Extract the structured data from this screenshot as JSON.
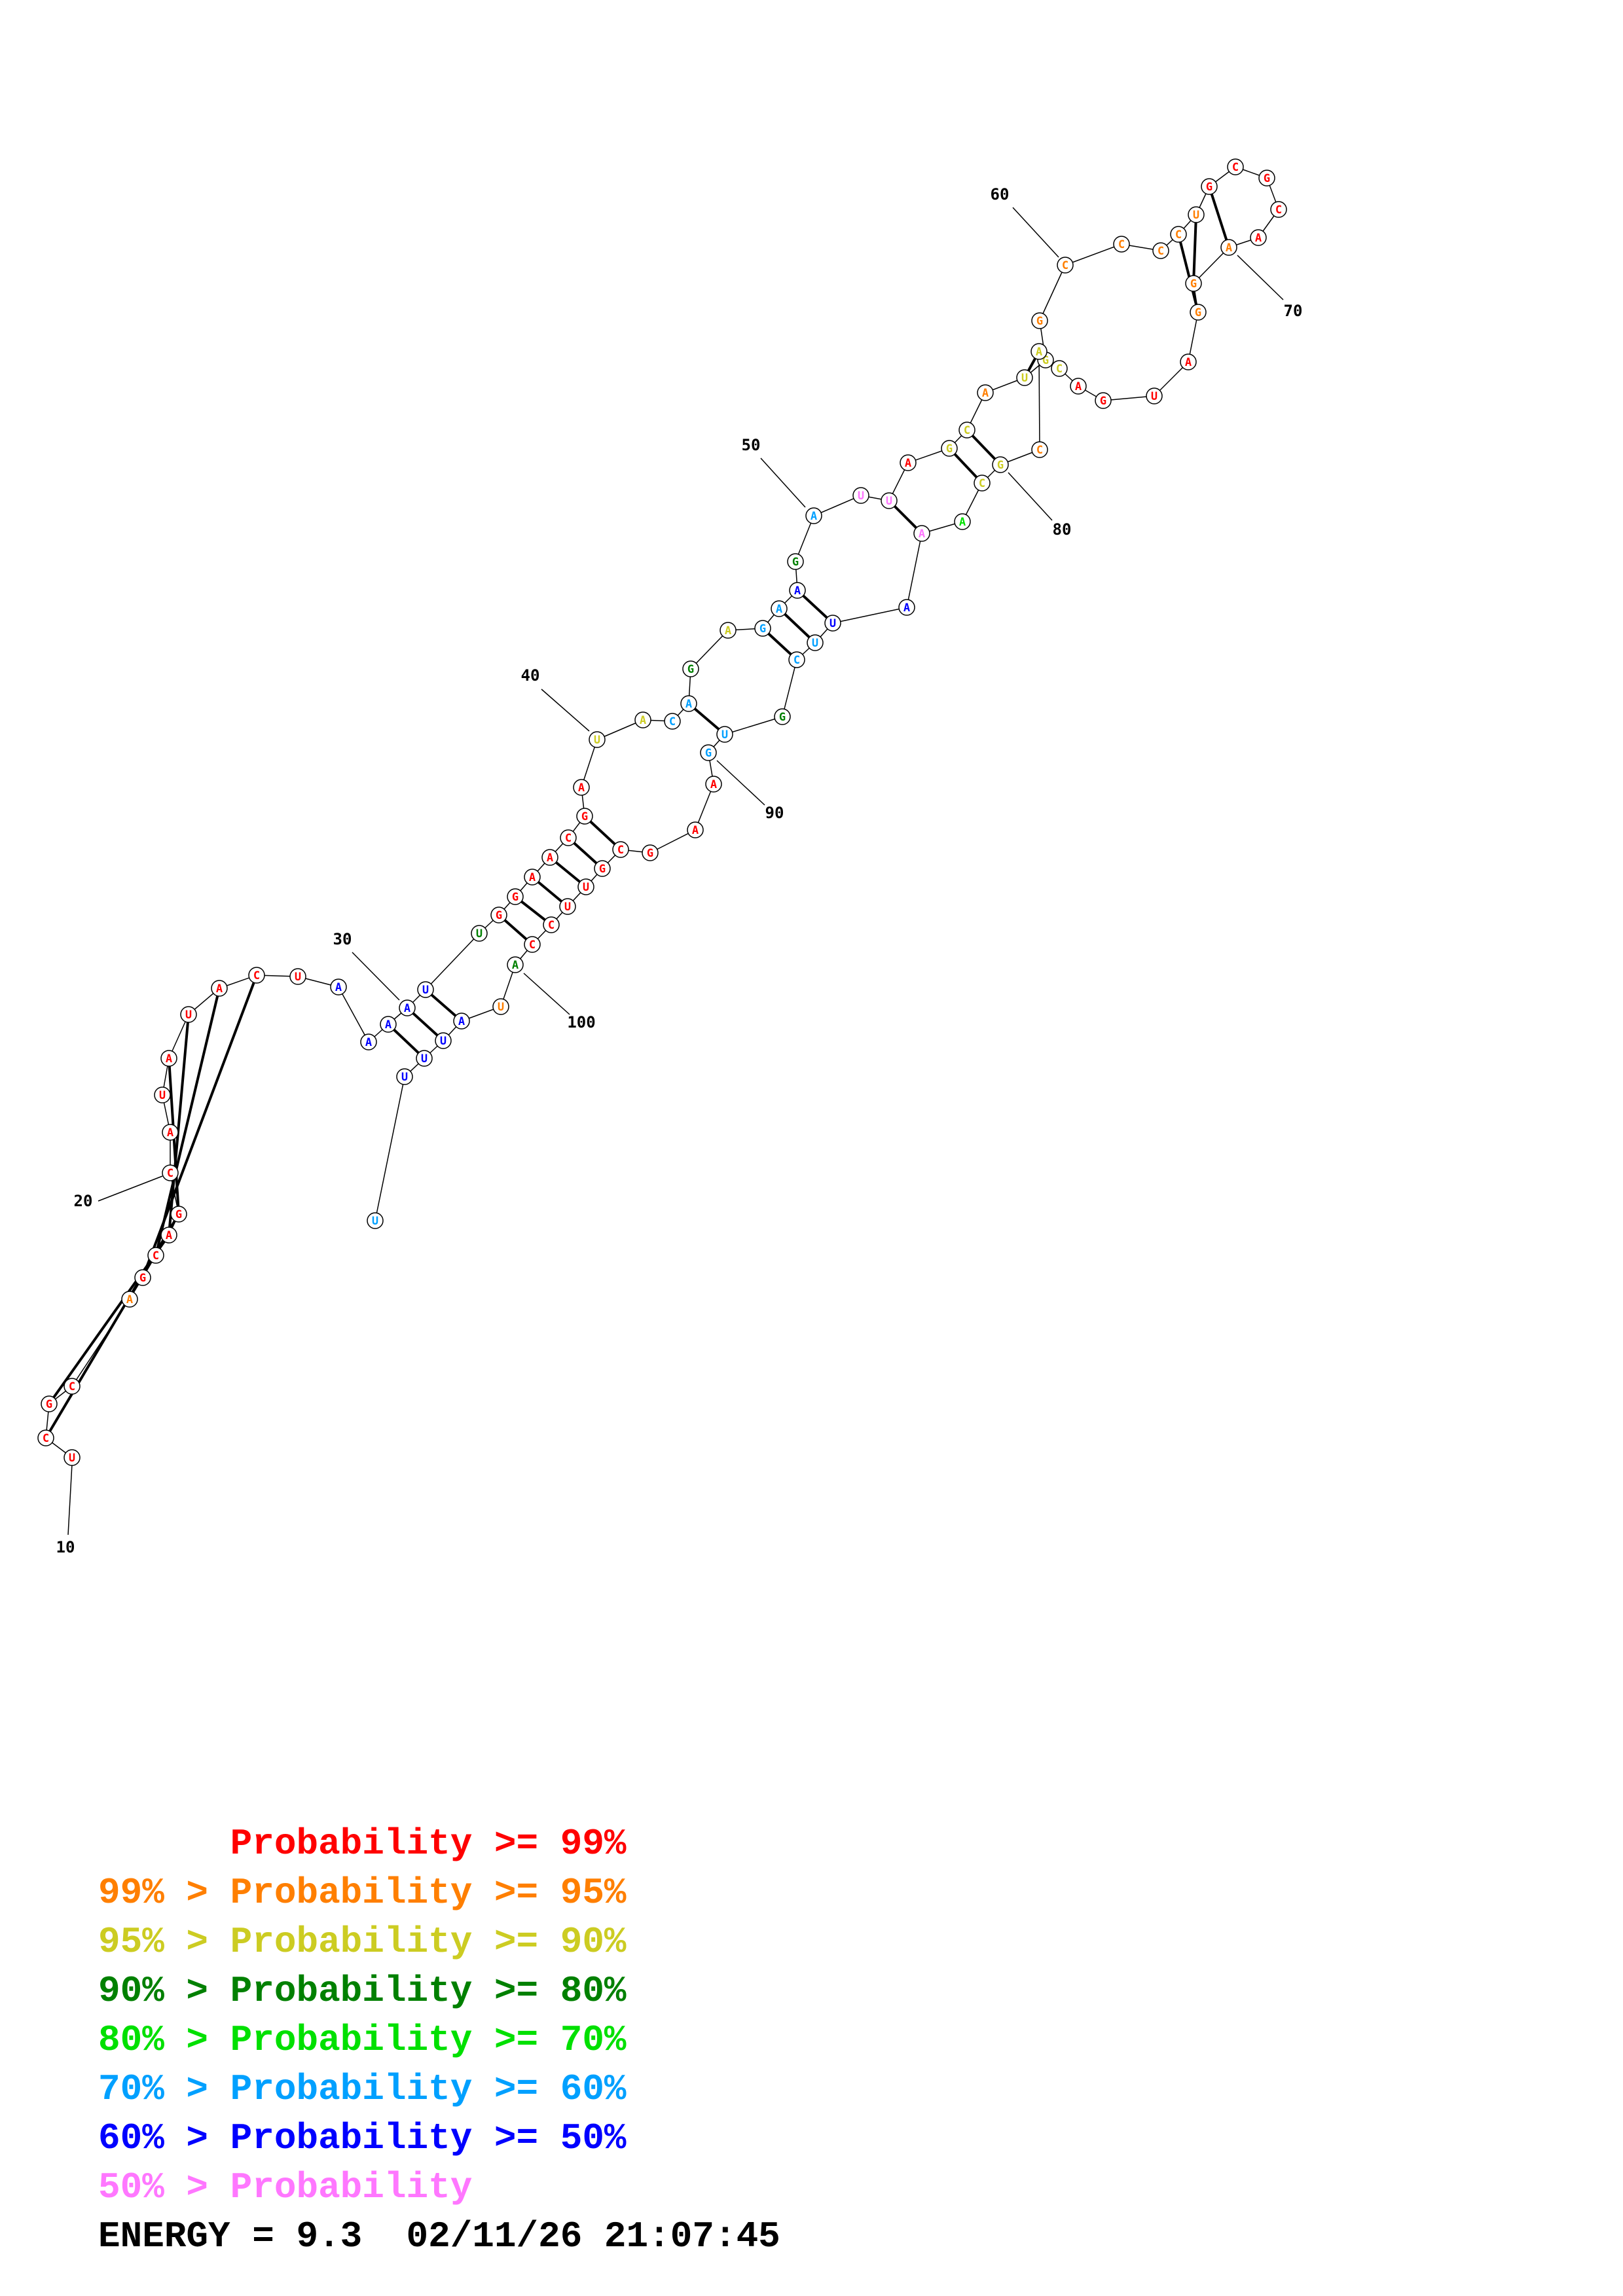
{
  "colors": {
    "p99": "#ff0000",
    "p95": "#ff7f00",
    "p90": "#cccc22",
    "p80": "#008000",
    "p70": "#00e000",
    "p60": "#00a0ff",
    "p50": "#0000ff",
    "plow": "#ff77ff"
  },
  "structure": {
    "nucleotides": [
      {
        "n": 10,
        "base": "U",
        "p": "p99"
      },
      {
        "n": 11,
        "base": "C",
        "p": "p99"
      },
      {
        "n": 12,
        "base": "G",
        "p": "p99"
      },
      {
        "n": 13,
        "base": "C",
        "p": "p99"
      },
      {
        "n": 14,
        "base": "A",
        "p": "p95"
      },
      {
        "n": 15,
        "base": "G",
        "p": "p99"
      },
      {
        "n": 16,
        "base": "C",
        "p": "p99"
      },
      {
        "n": 17,
        "base": "A",
        "p": "p99"
      },
      {
        "n": 18,
        "base": "G",
        "p": "p99"
      },
      {
        "n": 19,
        "base": "C",
        "p": "p99"
      },
      {
        "n": 20,
        "base": "A",
        "p": "p99"
      },
      {
        "n": 21,
        "base": "U",
        "p": "p99"
      },
      {
        "n": 22,
        "base": "A",
        "p": "p99"
      },
      {
        "n": 23,
        "base": "U",
        "p": "p99"
      },
      {
        "n": 24,
        "base": "A",
        "p": "p99"
      },
      {
        "n": 25,
        "base": "C",
        "p": "p99"
      },
      {
        "n": 26,
        "base": "U",
        "p": "p99"
      },
      {
        "n": 27,
        "base": "A",
        "p": "p50"
      },
      {
        "n": 28,
        "base": "A",
        "p": "p50"
      },
      {
        "n": 29,
        "base": "A",
        "p": "p50"
      },
      {
        "n": 30,
        "base": "A",
        "p": "p50"
      },
      {
        "n": 31,
        "base": "U",
        "p": "p50"
      },
      {
        "n": 32,
        "base": "U",
        "p": "p80"
      },
      {
        "n": 33,
        "base": "G",
        "p": "p99"
      },
      {
        "n": 34,
        "base": "G",
        "p": "p99"
      },
      {
        "n": 35,
        "base": "A",
        "p": "p99"
      },
      {
        "n": 36,
        "base": "A",
        "p": "p99"
      },
      {
        "n": 37,
        "base": "C",
        "p": "p99"
      },
      {
        "n": 38,
        "base": "G",
        "p": "p99"
      },
      {
        "n": 39,
        "base": "A",
        "p": "p99"
      },
      {
        "n": 40,
        "base": "U",
        "p": "p90"
      },
      {
        "n": 41,
        "base": "A",
        "p": "p90"
      },
      {
        "n": 42,
        "base": "C",
        "p": "p60"
      },
      {
        "n": 43,
        "base": "A",
        "p": "p60"
      },
      {
        "n": 44,
        "base": "G",
        "p": "p80"
      },
      {
        "n": 45,
        "base": "A",
        "p": "p90"
      },
      {
        "n": 46,
        "base": "G",
        "p": "p60"
      },
      {
        "n": 47,
        "base": "A",
        "p": "p60"
      },
      {
        "n": 48,
        "base": "A",
        "p": "p50"
      },
      {
        "n": 49,
        "base": "G",
        "p": "p80"
      },
      {
        "n": 50,
        "base": "A",
        "p": "p60"
      },
      {
        "n": 51,
        "base": "U",
        "p": "plow"
      },
      {
        "n": 52,
        "base": "U",
        "p": "plow"
      },
      {
        "n": 53,
        "base": "A",
        "p": "p99"
      },
      {
        "n": 54,
        "base": "G",
        "p": "p90"
      },
      {
        "n": 55,
        "base": "C",
        "p": "p90"
      },
      {
        "n": 56,
        "base": "A",
        "p": "p95"
      },
      {
        "n": 57,
        "base": "U",
        "p": "p90"
      },
      {
        "n": 58,
        "base": "G",
        "p": "p90"
      },
      {
        "n": 59,
        "base": "G",
        "p": "p95"
      },
      {
        "n": 60,
        "base": "C",
        "p": "p95"
      },
      {
        "n": 61,
        "base": "C",
        "p": "p95"
      },
      {
        "n": 62,
        "base": "C",
        "p": "p95"
      },
      {
        "n": 63,
        "base": "C",
        "p": "p95"
      },
      {
        "n": 64,
        "base": "U",
        "p": "p95"
      },
      {
        "n": 65,
        "base": "G",
        "p": "p99"
      },
      {
        "n": 66,
        "base": "C",
        "p": "p99"
      },
      {
        "n": 67,
        "base": "G",
        "p": "p99"
      },
      {
        "n": 68,
        "base": "C",
        "p": "p99"
      },
      {
        "n": 69,
        "base": "A",
        "p": "p99"
      },
      {
        "n": 70,
        "base": "A",
        "p": "p95"
      },
      {
        "n": 71,
        "base": "G",
        "p": "p95"
      },
      {
        "n": 72,
        "base": "G",
        "p": "p95"
      },
      {
        "n": 73,
        "base": "A",
        "p": "p99"
      },
      {
        "n": 74,
        "base": "U",
        "p": "p99"
      },
      {
        "n": 75,
        "base": "G",
        "p": "p99"
      },
      {
        "n": 76,
        "base": "A",
        "p": "p99"
      },
      {
        "n": 77,
        "base": "C",
        "p": "p90"
      },
      {
        "n": 78,
        "base": "A",
        "p": "p90"
      },
      {
        "n": 79,
        "base": "C",
        "p": "p95"
      },
      {
        "n": 80,
        "base": "G",
        "p": "p90"
      },
      {
        "n": 81,
        "base": "C",
        "p": "p90"
      },
      {
        "n": 82,
        "base": "A",
        "p": "p70"
      },
      {
        "n": 83,
        "base": "A",
        "p": "plow"
      },
      {
        "n": 84,
        "base": "A",
        "p": "p50"
      },
      {
        "n": 85,
        "base": "U",
        "p": "p50"
      },
      {
        "n": 86,
        "base": "U",
        "p": "p60"
      },
      {
        "n": 87,
        "base": "C",
        "p": "p60"
      },
      {
        "n": 88,
        "base": "G",
        "p": "p80"
      },
      {
        "n": 89,
        "base": "U",
        "p": "p60"
      },
      {
        "n": 90,
        "base": "G",
        "p": "p60"
      },
      {
        "n": 91,
        "base": "A",
        "p": "p99"
      },
      {
        "n": 92,
        "base": "A",
        "p": "p99"
      },
      {
        "n": 93,
        "base": "G",
        "p": "p99"
      },
      {
        "n": 94,
        "base": "C",
        "p": "p99"
      },
      {
        "n": 95,
        "base": "G",
        "p": "p99"
      },
      {
        "n": 96,
        "base": "U",
        "p": "p99"
      },
      {
        "n": 97,
        "base": "U",
        "p": "p99"
      },
      {
        "n": 98,
        "base": "C",
        "p": "p99"
      },
      {
        "n": 99,
        "base": "C",
        "p": "p99"
      },
      {
        "n": 100,
        "base": "A",
        "p": "p80"
      },
      {
        "n": 101,
        "base": "U",
        "p": "p95"
      },
      {
        "n": 102,
        "base": "A",
        "p": "p50"
      },
      {
        "n": 103,
        "base": "U",
        "p": "p50"
      },
      {
        "n": 104,
        "base": "U",
        "p": "p50"
      },
      {
        "n": 105,
        "base": "U",
        "p": "p50"
      },
      {
        "n": 106,
        "base": "U",
        "p": "p60"
      }
    ],
    "pairs": [
      [
        11,
        18
      ],
      [
        12,
        17
      ],
      [
        15,
        25
      ],
      [
        16,
        24
      ],
      [
        17,
        23
      ],
      [
        18,
        22
      ],
      [
        29,
        104
      ],
      [
        30,
        103
      ],
      [
        31,
        102
      ],
      [
        33,
        99
      ],
      [
        34,
        98
      ],
      [
        35,
        97
      ],
      [
        36,
        96
      ],
      [
        37,
        95
      ],
      [
        38,
        94
      ],
      [
        43,
        89
      ],
      [
        46,
        87
      ],
      [
        47,
        86
      ],
      [
        48,
        85
      ],
      [
        52,
        83
      ],
      [
        54,
        81
      ],
      [
        55,
        80
      ],
      [
        57,
        78
      ],
      [
        58,
        77
      ],
      [
        63,
        72
      ],
      [
        64,
        71
      ],
      [
        65,
        70
      ]
    ],
    "number_labels": [
      "10",
      "20",
      "30",
      "40",
      "50",
      "60",
      "70",
      "80",
      "90",
      "100"
    ]
  },
  "legend": [
    {
      "left": "",
      "right": "Probability >= 99%",
      "color_key": "p99"
    },
    {
      "left": "99% > ",
      "right": "Probability >= 95%",
      "color_key": "p95"
    },
    {
      "left": "95% > ",
      "right": "Probability >= 90%",
      "color_key": "p90"
    },
    {
      "left": "90% > ",
      "right": "Probability >= 80%",
      "color_key": "p80"
    },
    {
      "left": "80% > ",
      "right": "Probability >= 70%",
      "color_key": "p70"
    },
    {
      "left": "70% > ",
      "right": "Probability >= 60%",
      "color_key": "p60"
    },
    {
      "left": "60% > ",
      "right": "Probability >= 50%",
      "color_key": "p50"
    },
    {
      "left": "50% > ",
      "right": "Probability",
      "color_key": "plow"
    }
  ],
  "footer": {
    "energy_label": "ENERGY = 9.3",
    "timestamp": "02/11/26 21:07:45"
  }
}
